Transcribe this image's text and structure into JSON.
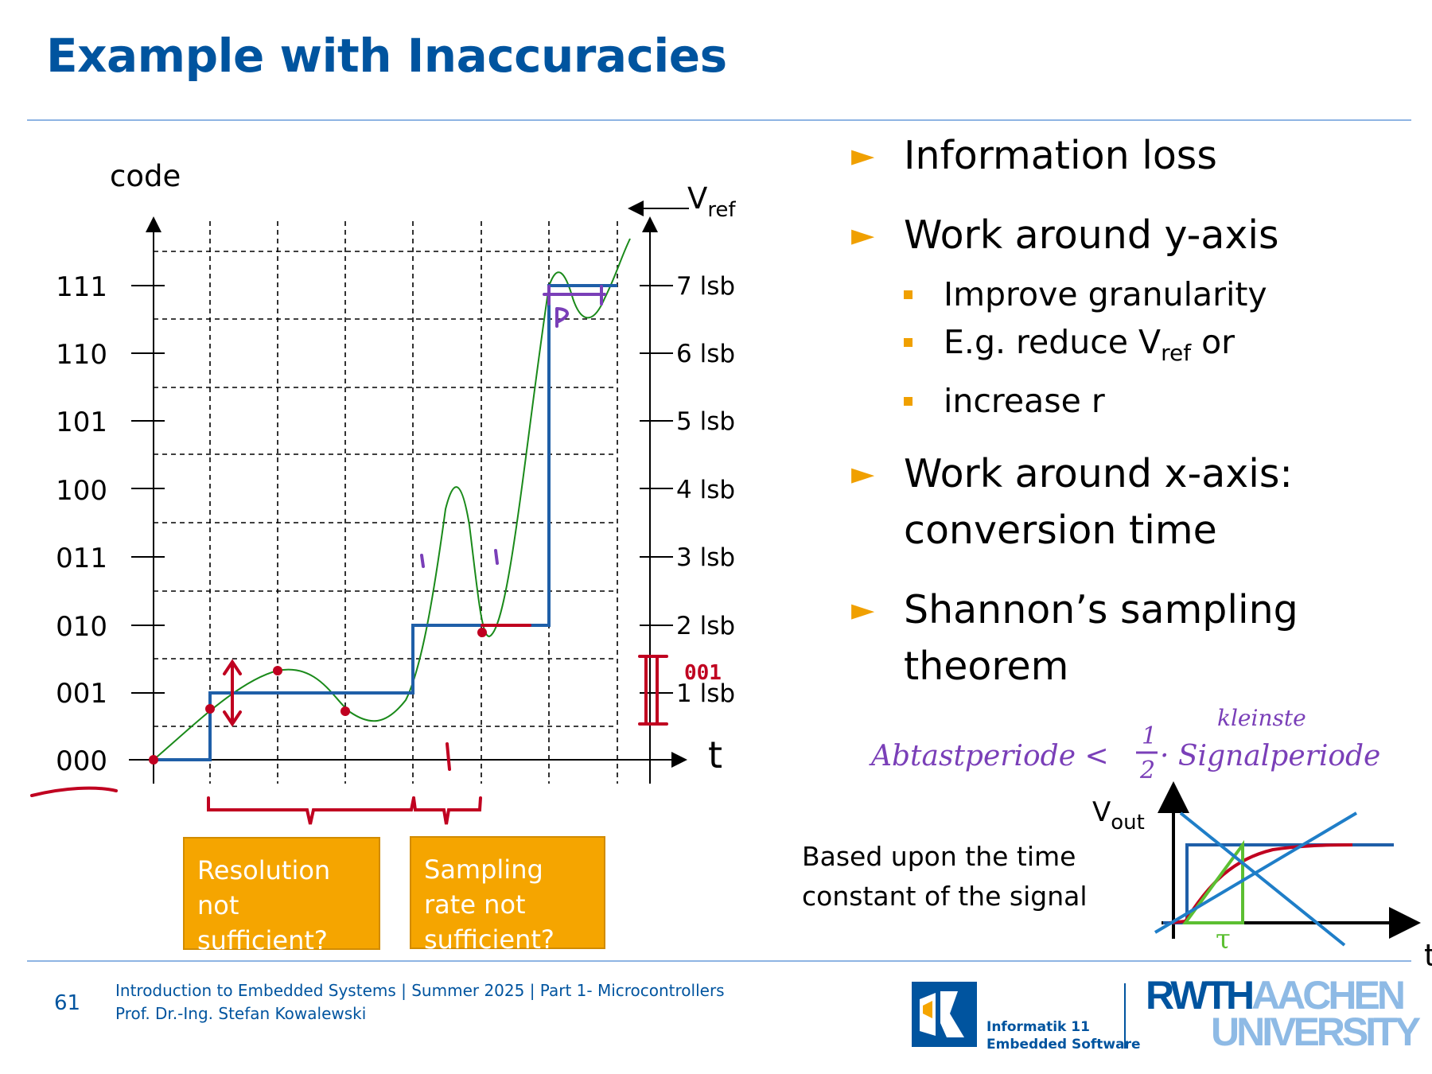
{
  "slide": {
    "title": "Example with Inaccuracies",
    "number": "61"
  },
  "diagram": {
    "y_axis_label": "code",
    "x_axis_label": "t",
    "vref_label": "V",
    "vref_sub": "ref",
    "codes": [
      "000",
      "001",
      "010",
      "011",
      "100",
      "101",
      "110",
      "111"
    ],
    "lsb_labels": [
      "1 lsb",
      "2 lsb",
      "3 lsb",
      "4 lsb",
      "5 lsb",
      "6 lsb",
      "7 lsb"
    ],
    "colors": {
      "staircase": "#1f5fa8",
      "signal": "#1a8a1a",
      "annotation_red": "#c00020",
      "annotation_purple": "#7a3fb8",
      "box": "#f5a500"
    }
  },
  "boxes": {
    "resolution": "Resolution not sufficient?",
    "sampling": "Sampling rate not sufficient?"
  },
  "bullets": [
    {
      "text": "Information loss",
      "subs": []
    },
    {
      "text": "Work around y-axis",
      "subs": [
        {
          "text": "Improve granularity"
        },
        {
          "text": "E.g. reduce V",
          "sub": "ref",
          "after": " or"
        },
        {
          "text": "increase r"
        }
      ]
    },
    {
      "text": "Work around x-axis: conversion time",
      "subs": []
    },
    {
      "text": "Shannon’s sampling theorem",
      "subs": []
    }
  ],
  "handwriting": {
    "formula_left": "Abtastperiode <",
    "formula_frac_num": "1",
    "formula_frac_den": "2",
    "formula_right": "· Signalperiode",
    "formula_above": "kleinste",
    "small_code": "001",
    "sampling_tick": "1"
  },
  "inset": {
    "vout_label": "V",
    "vout_sub": "out",
    "t_label": "t",
    "tau_label": "τ",
    "note": "Based upon the time constant of the signal"
  },
  "footer": {
    "line1": "Introduction to Embedded Systems | Summer 2025 | Part 1- Microcontrollers",
    "line2": "Prof. Dr.-Ing. Stefan Kowalewski"
  },
  "logo": {
    "caption_line1": "Informatik 11",
    "caption_line2": "Embedded Software",
    "rwth": "RWTH",
    "aachen": "AACHEN",
    "university": "UNIVERSITY"
  }
}
